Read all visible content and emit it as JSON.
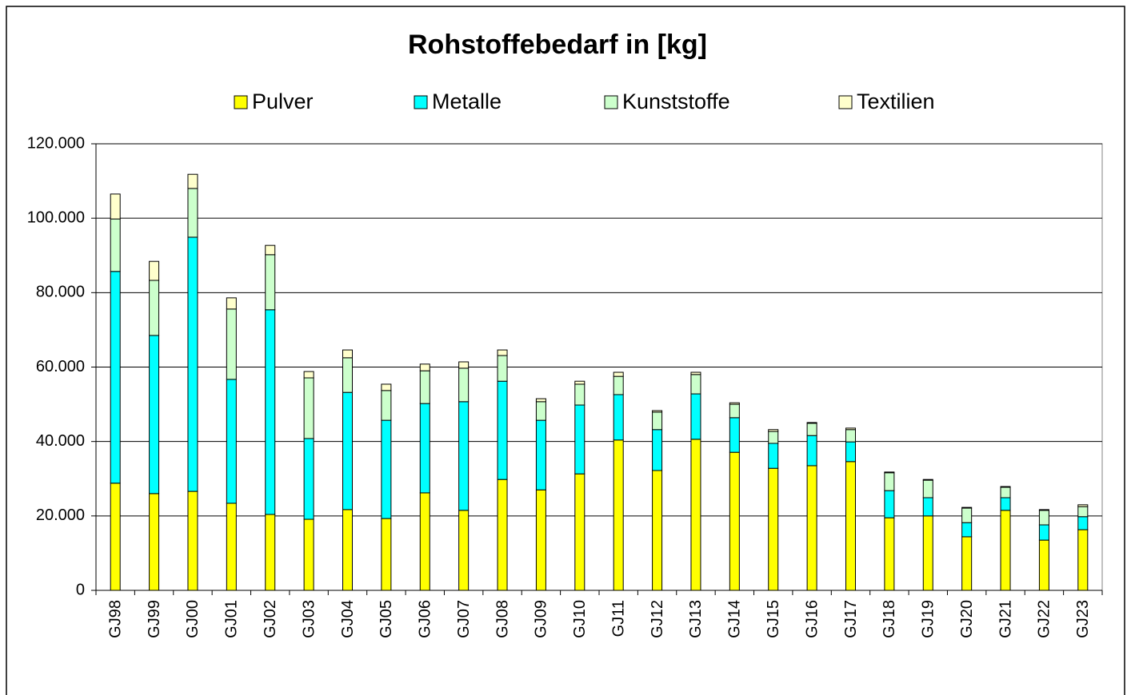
{
  "chart_data": {
    "type": "stacked_bar",
    "title": "Rohstoffebedarf in [kg]",
    "categories": [
      "GJ98",
      "GJ99",
      "GJ00",
      "GJ01",
      "GJ02",
      "GJ03",
      "GJ04",
      "GJ05",
      "GJ06",
      "GJ07",
      "GJ08",
      "GJ09",
      "GJ10",
      "GJ11",
      "GJ12",
      "GJ13",
      "GJ14",
      "GJ15",
      "GJ16",
      "GJ17",
      "GJ18",
      "GJ19",
      "GJ20",
      "GJ21",
      "GJ22",
      "GJ23"
    ],
    "series": [
      {
        "name": "Pulver",
        "color": "#ffff00",
        "values": [
          28800,
          26000,
          26600,
          23400,
          20400,
          19100,
          21700,
          19300,
          26200,
          21500,
          29800,
          27000,
          31300,
          40400,
          32200,
          40600,
          37100,
          32800,
          33500,
          34600,
          19500,
          20000,
          14400,
          21500,
          13500,
          16300
        ]
      },
      {
        "name": "Metalle",
        "color": "#00ffff",
        "values": [
          56900,
          42500,
          68300,
          33300,
          55000,
          21700,
          31500,
          26400,
          24000,
          29200,
          26400,
          18700,
          18500,
          12200,
          11000,
          12200,
          9300,
          6700,
          8100,
          5300,
          7300,
          4900,
          3800,
          3400,
          4100,
          3500
        ]
      },
      {
        "name": "Kunststoffe",
        "color": "#ccffcc",
        "values": [
          14100,
          14800,
          13100,
          18900,
          14800,
          16300,
          9300,
          8000,
          8800,
          9000,
          6900,
          5000,
          5600,
          4900,
          4700,
          5200,
          3600,
          3200,
          3300,
          3300,
          4800,
          4700,
          3900,
          2800,
          3900,
          2700
        ]
      },
      {
        "name": "Textilien",
        "color": "#ffffcc",
        "values": [
          6700,
          5100,
          3800,
          3000,
          2500,
          1700,
          2100,
          1700,
          1800,
          1700,
          1500,
          800,
          800,
          1100,
          400,
          600,
          400,
          500,
          200,
          400,
          200,
          200,
          200,
          200,
          200,
          500
        ]
      }
    ],
    "ylim": [
      0,
      120000
    ],
    "yticks": [
      0,
      {
        "value": 20000,
        "label": "20.000"
      },
      {
        "value": 40000,
        "label": "40.000"
      },
      {
        "value": 60000,
        "label": "60.000"
      },
      {
        "value": 80000,
        "label": "80.000"
      },
      {
        "value": 100000,
        "label": "100.000"
      },
      {
        "value": 120000,
        "label": "120.000"
      }
    ],
    "grid": true,
    "legend": "top"
  }
}
